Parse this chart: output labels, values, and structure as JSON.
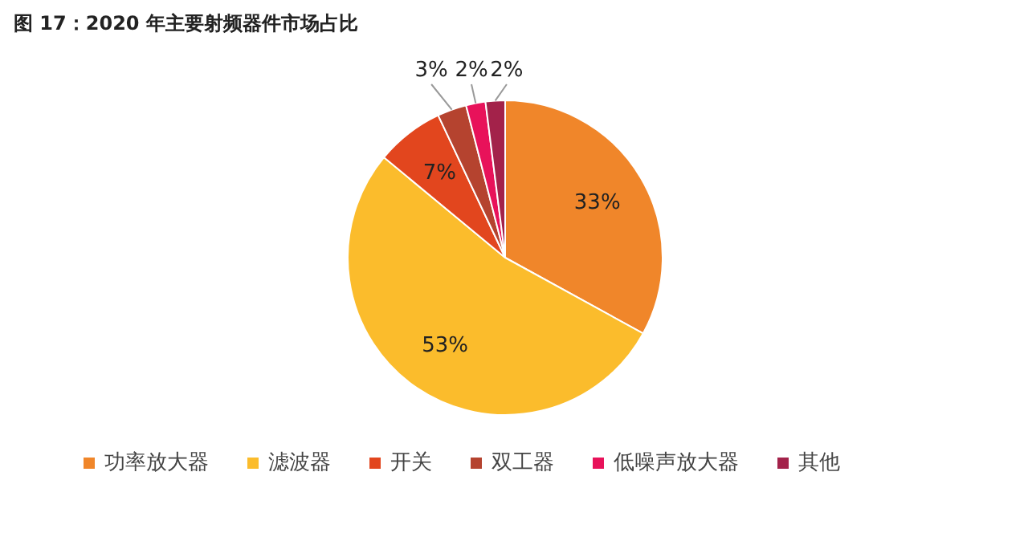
{
  "chart_data": {
    "type": "pie",
    "title": "图 17：2020 年主要射频器件市场占比",
    "categories": [
      "功率放大器",
      "滤波器",
      "开关",
      "双工器",
      "低噪声放大器",
      "其他"
    ],
    "values": [
      33,
      53,
      7,
      3,
      2,
      2
    ],
    "colors": [
      "#f0862a",
      "#fbbc2c",
      "#e2461e",
      "#b5432f",
      "#e8125a",
      "#a3224a"
    ],
    "value_labels": [
      "33%",
      "53%",
      "7%",
      "3%",
      "2%",
      "2%"
    ],
    "legend": "bottom"
  }
}
